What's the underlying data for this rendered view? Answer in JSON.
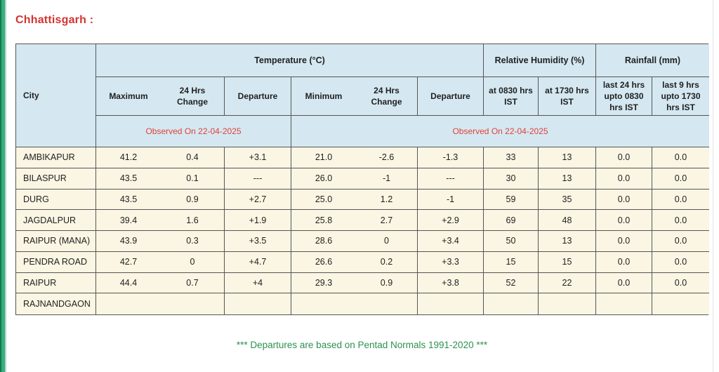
{
  "page": {
    "title": "Chhattisgarh :",
    "footer_note": "*** Departures are based on Pentad Normals 1991-2020 ***"
  },
  "table": {
    "groups": {
      "temperature": "Temperature (°C)",
      "humidity": "Relative Humidity (%)",
      "rainfall": "Rainfall (mm)"
    },
    "columns": {
      "city": "City",
      "max": "Maximum",
      "max_change": "24 Hrs\nChange",
      "max_dep": "Departure",
      "min": "Minimum",
      "min_change": "24 Hrs\nChange",
      "min_dep": "Departure",
      "rh_0830": "at 0830 hrs\nIST",
      "rh_1730": "at 1730 hrs\nIST",
      "rain_24": "last 24 hrs\nupto 0830\nhrs IST",
      "rain_9": "last 9 hrs\nupto 1730\nhrs IST"
    },
    "observed": {
      "temp_max_group": "Observed On 22-04-2025",
      "temp_min_group": "Observed On 22-04-2025"
    },
    "rows": [
      {
        "city": "AMBIKAPUR",
        "max": "41.2",
        "max_change": "0.4",
        "max_dep": "+3.1",
        "min": "21.0",
        "min_change": "-2.6",
        "min_dep": "-1.3",
        "rh_0830": "33",
        "rh_1730": "13",
        "rain_24": "0.0",
        "rain_9": "0.0"
      },
      {
        "city": "BILASPUR",
        "max": "43.5",
        "max_change": "0.1",
        "max_dep": "---",
        "min": "26.0",
        "min_change": "-1",
        "min_dep": "---",
        "rh_0830": "30",
        "rh_1730": "13",
        "rain_24": "0.0",
        "rain_9": "0.0"
      },
      {
        "city": "DURG",
        "max": "43.5",
        "max_change": "0.9",
        "max_dep": "+2.7",
        "min": "25.0",
        "min_change": "1.2",
        "min_dep": "-1",
        "rh_0830": "59",
        "rh_1730": "35",
        "rain_24": "0.0",
        "rain_9": "0.0"
      },
      {
        "city": "JAGDALPUR",
        "max": "39.4",
        "max_change": "1.6",
        "max_dep": "+1.9",
        "min": "25.8",
        "min_change": "2.7",
        "min_dep": "+2.9",
        "rh_0830": "69",
        "rh_1730": "48",
        "rain_24": "0.0",
        "rain_9": "0.0"
      },
      {
        "city": "RAIPUR (MANA)",
        "max": "43.9",
        "max_change": "0.3",
        "max_dep": "+3.5",
        "min": "28.6",
        "min_change": "0",
        "min_dep": "+3.4",
        "rh_0830": "50",
        "rh_1730": "13",
        "rain_24": "0.0",
        "rain_9": "0.0"
      },
      {
        "city": "PENDRA ROAD",
        "max": "42.7",
        "max_change": "0",
        "max_dep": "+4.7",
        "min": "26.6",
        "min_change": "0.2",
        "min_dep": "+3.3",
        "rh_0830": "15",
        "rh_1730": "15",
        "rain_24": "0.0",
        "rain_9": "0.0"
      },
      {
        "city": "RAIPUR",
        "max": "44.4",
        "max_change": "0.7",
        "max_dep": "+4",
        "min": "29.3",
        "min_change": "0.9",
        "min_dep": "+3.8",
        "rh_0830": "52",
        "rh_1730": "22",
        "rain_24": "0.0",
        "rain_9": "0.0"
      },
      {
        "city": "RAJNANDGAON",
        "max": "",
        "max_change": "",
        "max_dep": "",
        "min": "",
        "min_change": "",
        "min_dep": "",
        "rh_0830": "",
        "rh_1730": "",
        "rain_24": "",
        "rain_9": ""
      }
    ]
  },
  "colors": {
    "header_bg": "#d5e8f1",
    "row_bg": "#faf6e3",
    "title_red": "#d3342e",
    "observed_red": "#e0423a",
    "footer_green": "#2c9150",
    "border": "#555555",
    "left_strip_green": "#3cab7e"
  }
}
